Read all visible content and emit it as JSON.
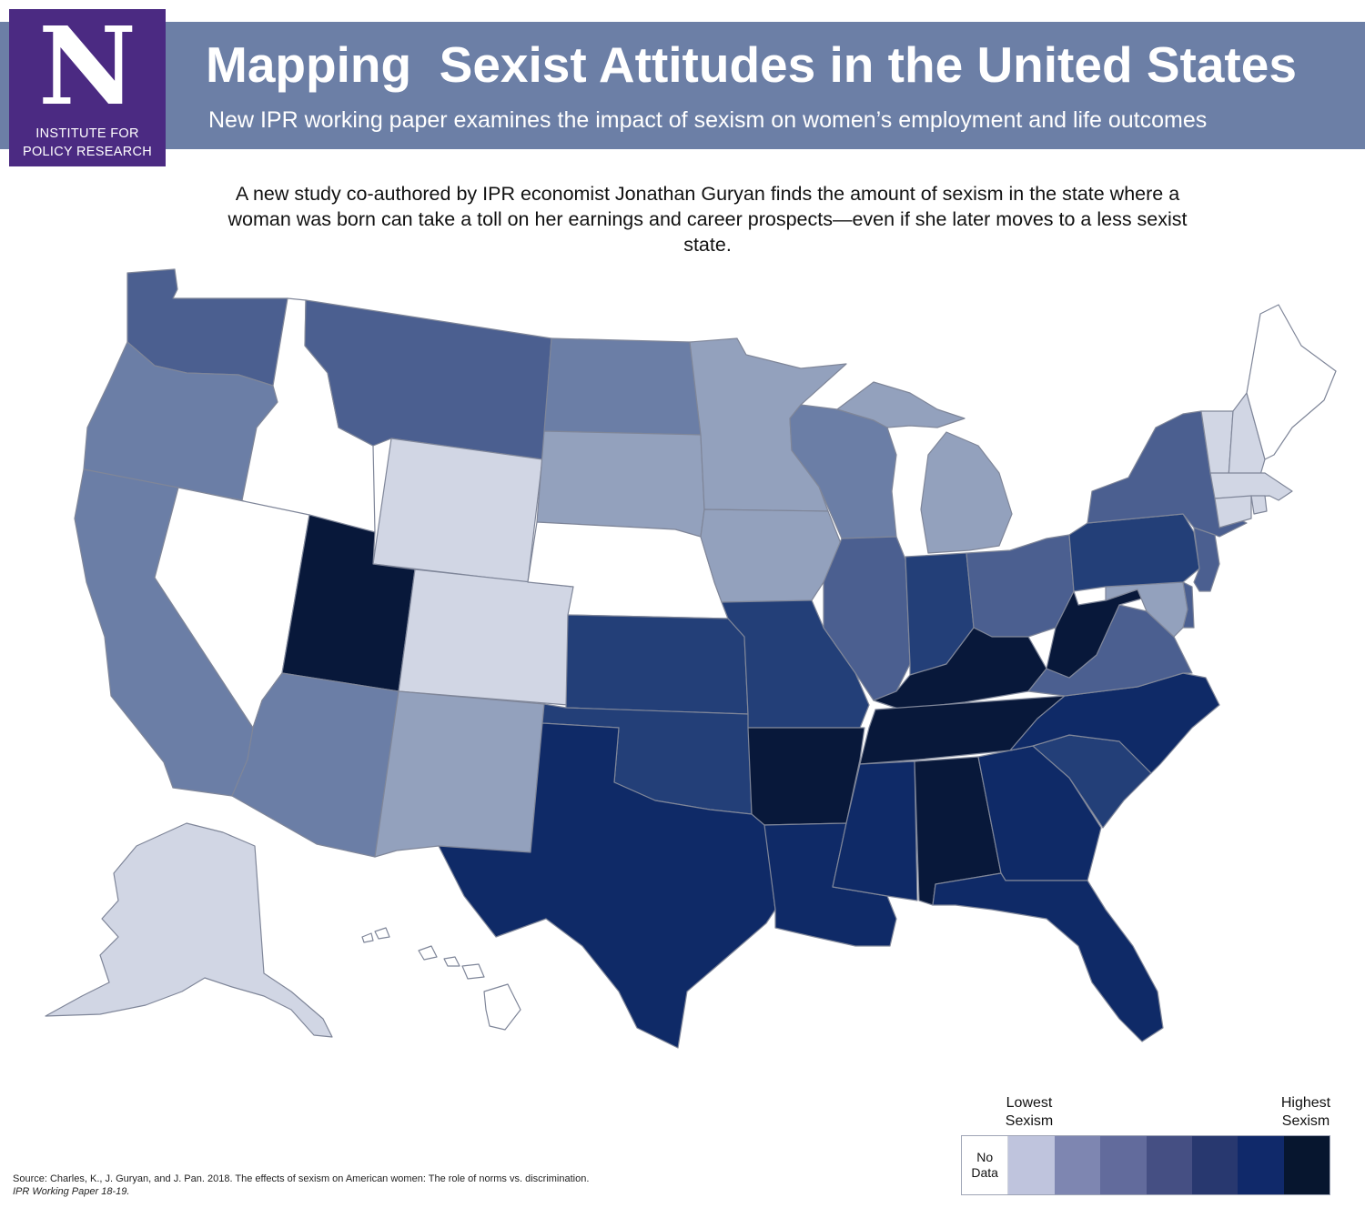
{
  "header": {
    "title": "Mapping  Sexist Attitudes in the United States",
    "subtitle": "New IPR working paper examines the impact of sexism on women’s employment and life outcomes",
    "band_color": "#6c7fa6"
  },
  "logo": {
    "letter": "N",
    "line1": "INSTITUTE FOR",
    "line2": "POLICY RESEARCH",
    "color": "#4b2a82"
  },
  "intro": "A new study co-authored by IPR economist Jonathan Guryan finds the amount of sexism in the state where a woman was born can take a toll on her earnings and career prospects—even if she later moves to a less sexist state.",
  "legend": {
    "low_label": "Lowest Sexism",
    "high_label": "Highest Sexism",
    "no_data_label": "No Data",
    "colors": [
      "#bfc4dd",
      "#7e86b1",
      "#626b9c",
      "#454f83",
      "#28386f",
      "#10296a",
      "#07162f"
    ]
  },
  "map": {
    "colors": {
      "0": "#ffffff",
      "1": "#d1d6e4",
      "2": "#93a1bd",
      "3": "#6b7ea6",
      "4": "#4b5f90",
      "5": "#233f78",
      "6": "#0f2a67",
      "7": "#08183a"
    },
    "states": [
      {
        "name": "Washington",
        "level": 4
      },
      {
        "name": "Oregon",
        "level": 3
      },
      {
        "name": "California",
        "level": 3
      },
      {
        "name": "Idaho",
        "level": 0
      },
      {
        "name": "Nevada",
        "level": 0
      },
      {
        "name": "Montana",
        "level": 4
      },
      {
        "name": "Wyoming",
        "level": 1
      },
      {
        "name": "Utah",
        "level": 7
      },
      {
        "name": "Arizona",
        "level": 3
      },
      {
        "name": "Colorado",
        "level": 1
      },
      {
        "name": "New Mexico",
        "level": 2
      },
      {
        "name": "North Dakota",
        "level": 3
      },
      {
        "name": "South Dakota",
        "level": 2
      },
      {
        "name": "Nebraska",
        "level": 0
      },
      {
        "name": "Kansas",
        "level": 5
      },
      {
        "name": "Oklahoma",
        "level": 5
      },
      {
        "name": "Texas",
        "level": 6
      },
      {
        "name": "Minnesota",
        "level": 2
      },
      {
        "name": "Iowa",
        "level": 2
      },
      {
        "name": "Missouri",
        "level": 5
      },
      {
        "name": "Arkansas",
        "level": 7
      },
      {
        "name": "Louisiana",
        "level": 6
      },
      {
        "name": "Wisconsin",
        "level": 3
      },
      {
        "name": "Michigan",
        "level": 2
      },
      {
        "name": "Michigan Upper Peninsula",
        "level": 2
      },
      {
        "name": "Illinois",
        "level": 4
      },
      {
        "name": "Indiana",
        "level": 5
      },
      {
        "name": "Ohio",
        "level": 4
      },
      {
        "name": "Kentucky",
        "level": 7
      },
      {
        "name": "Tennessee",
        "level": 7
      },
      {
        "name": "Mississippi",
        "level": 6
      },
      {
        "name": "Alabama",
        "level": 7
      },
      {
        "name": "Georgia",
        "level": 6
      },
      {
        "name": "Florida",
        "level": 6
      },
      {
        "name": "South Carolina",
        "level": 5
      },
      {
        "name": "North Carolina",
        "level": 6
      },
      {
        "name": "Virginia",
        "level": 4
      },
      {
        "name": "West Virginia",
        "level": 7
      },
      {
        "name": "Maryland",
        "level": 2
      },
      {
        "name": "Delaware",
        "level": 4
      },
      {
        "name": "Pennsylvania",
        "level": 5
      },
      {
        "name": "New Jersey",
        "level": 4
      },
      {
        "name": "New York",
        "level": 4
      },
      {
        "name": "Connecticut",
        "level": 1
      },
      {
        "name": "Rhode Island",
        "level": 1
      },
      {
        "name": "Massachusetts",
        "level": 1
      },
      {
        "name": "Vermont",
        "level": 1
      },
      {
        "name": "New Hampshire",
        "level": 1
      },
      {
        "name": "Maine",
        "level": 0
      },
      {
        "name": "Alaska",
        "level": 1
      },
      {
        "name": "Hawaii",
        "level": 0
      }
    ]
  },
  "source": {
    "line1": "Source: Charles, K., J. Guryan, and J. Pan. 2018. The effects of sexism on American women: The role of norms vs. discrimination.",
    "line2": "IPR Working Paper 18-19."
  }
}
